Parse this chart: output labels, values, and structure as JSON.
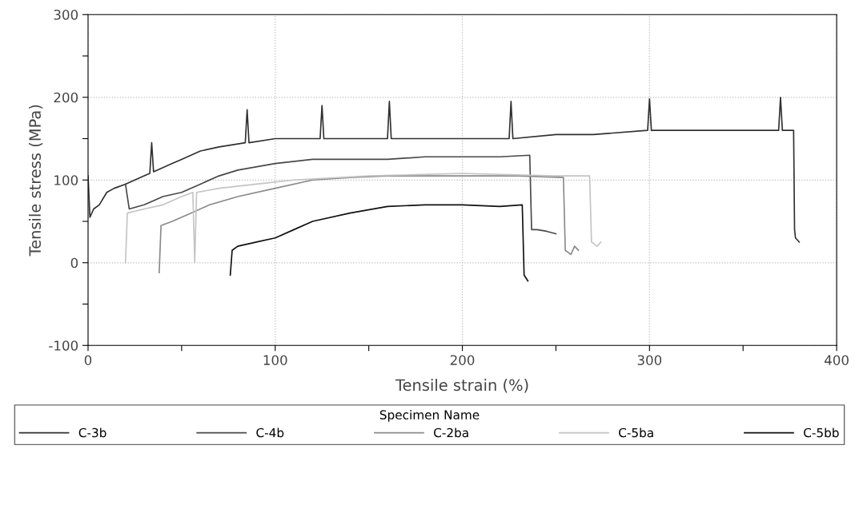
{
  "chart_data": {
    "type": "line",
    "xlabel": "Tensile strain (%)",
    "ylabel": "Tensile stress (MPa)",
    "legend_title": "Specimen Name",
    "legend": "bottom",
    "grid": true,
    "line_style": "solid",
    "marker": "none",
    "xlim": [
      0,
      400
    ],
    "ylim": [
      -100,
      300
    ],
    "xticks": [
      0,
      {
        "value": 50,
        "label": null
      },
      100,
      {
        "value": 150,
        "label": null
      },
      200,
      {
        "value": 250,
        "label": null
      },
      300,
      {
        "value": 350,
        "label": null
      },
      400
    ],
    "yticks": [
      -100,
      {
        "value": -50,
        "label": null
      },
      0,
      {
        "value": 50,
        "label": null
      },
      100,
      {
        "value": 150,
        "label": null
      },
      200,
      {
        "value": 250,
        "label": null
      },
      300
    ],
    "series": [
      {
        "name": "C-3b",
        "color": "#303030",
        "x": [
          0,
          1,
          3,
          6,
          10,
          14,
          20,
          25,
          30,
          33,
          34,
          35,
          45,
          50,
          60,
          70,
          84,
          85,
          86,
          100,
          124,
          125,
          126,
          140,
          160,
          161,
          162,
          180,
          200,
          225,
          226,
          227,
          250,
          270,
          299,
          300,
          301,
          320,
          340,
          360,
          369,
          370,
          371,
          377,
          377.5,
          378,
          380
        ],
        "values": [
          105,
          55,
          65,
          70,
          85,
          90,
          95,
          100,
          105,
          108,
          145,
          110,
          120,
          125,
          135,
          140,
          145,
          185,
          145,
          150,
          150,
          190,
          150,
          150,
          150,
          195,
          150,
          150,
          150,
          150,
          195,
          150,
          155,
          155,
          160,
          198,
          160,
          160,
          160,
          160,
          160,
          200,
          160,
          160,
          40,
          30,
          25
        ]
      },
      {
        "name": "C-4b",
        "color": "#484848",
        "x": [
          20,
          22,
          30,
          40,
          50,
          60,
          70,
          80,
          100,
          120,
          140,
          160,
          180,
          200,
          220,
          236,
          237,
          240,
          245,
          250
        ],
        "values": [
          95,
          65,
          70,
          80,
          85,
          95,
          105,
          112,
          120,
          125,
          125,
          125,
          128,
          128,
          128,
          130,
          40,
          40,
          38,
          35
        ]
      },
      {
        "name": "C-2ba",
        "color": "#8a8a8a",
        "x": [
          38,
          39,
          45,
          55,
          65,
          80,
          100,
          120,
          140,
          160,
          200,
          230,
          254,
          255,
          258,
          260,
          262
        ],
        "values": [
          -12,
          45,
          50,
          60,
          70,
          80,
          90,
          100,
          103,
          105,
          105,
          105,
          103,
          15,
          10,
          20,
          15
        ]
      },
      {
        "name": "C-5ba",
        "color": "#c4c4c4",
        "x": [
          20,
          21,
          30,
          40,
          50,
          56,
          57,
          58,
          70,
          90,
          110,
          150,
          200,
          250,
          268,
          269,
          272,
          274
        ],
        "values": [
          0,
          60,
          65,
          70,
          80,
          85,
          0,
          85,
          90,
          95,
          100,
          105,
          108,
          105,
          105,
          25,
          20,
          25
        ]
      },
      {
        "name": "C-5bb",
        "color": "#101010",
        "x": [
          76,
          77,
          80,
          90,
          100,
          110,
          120,
          140,
          160,
          180,
          200,
          220,
          232,
          233,
          235
        ],
        "values": [
          -15,
          15,
          20,
          25,
          30,
          40,
          50,
          60,
          68,
          70,
          70,
          68,
          70,
          -15,
          -22
        ]
      }
    ]
  }
}
